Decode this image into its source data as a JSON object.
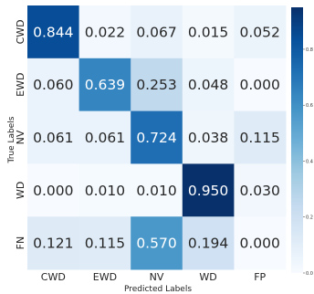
{
  "chart_data": {
    "type": "heatmap",
    "title": "",
    "xlabel": "Predicted Labels",
    "ylabel": "True Labels",
    "x_categories": [
      "CWD",
      "EWD",
      "NV",
      "WD",
      "FP"
    ],
    "y_categories": [
      "CWD",
      "EWD",
      "NV",
      "WD",
      "FN"
    ],
    "values": [
      [
        0.844,
        0.022,
        0.067,
        0.015,
        0.052
      ],
      [
        0.06,
        0.639,
        0.253,
        0.048,
        0.0
      ],
      [
        0.061,
        0.061,
        0.724,
        0.038,
        0.115
      ],
      [
        0.0,
        0.01,
        0.01,
        0.95,
        0.03
      ],
      [
        0.121,
        0.115,
        0.57,
        0.194,
        0.0
      ]
    ],
    "colorbar": {
      "colormap": "Blues",
      "range": [
        0.0,
        0.95
      ],
      "ticks": [
        "0.0",
        "0.2",
        "0.4",
        "0.6",
        "0.8"
      ]
    },
    "grid": false,
    "legend": "colorbar-right"
  }
}
